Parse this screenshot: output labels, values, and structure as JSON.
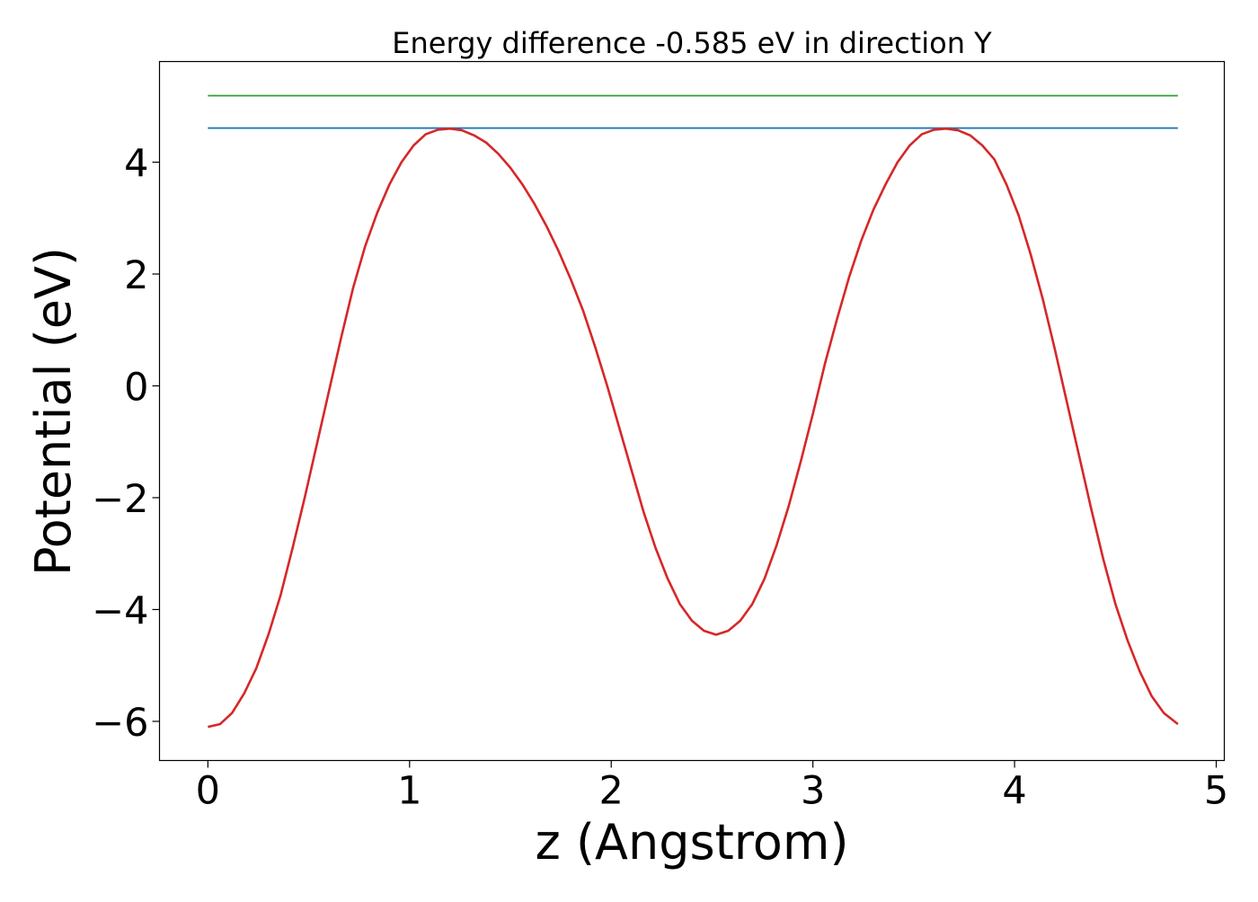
{
  "chart_data": {
    "type": "line",
    "title": "Energy difference -0.585 eV in direction Y",
    "xlabel": "z (Angstrom)",
    "ylabel": "Potential (eV)",
    "xlim": [
      -0.24,
      5.04
    ],
    "ylim": [
      -6.7,
      5.8
    ],
    "grid": false,
    "legend": "none",
    "xticks": [
      0,
      1,
      2,
      3,
      4,
      5
    ],
    "xtick_labels": [
      "0",
      "1",
      "2",
      "3",
      "4",
      "5"
    ],
    "yticks": [
      -6,
      -4,
      -2,
      0,
      2,
      4
    ],
    "ytick_labels": [
      "−6",
      "−4",
      "−2",
      "0",
      "2",
      "4"
    ],
    "series": [
      {
        "color": "#2ca02c",
        "x": [
          0,
          4.81
        ],
        "y": [
          5.19,
          5.19
        ]
      },
      {
        "color": "#1f77b4",
        "x": [
          0,
          4.81
        ],
        "y": [
          4.61,
          4.61
        ]
      },
      {
        "color": "#d62728",
        "x": [
          0,
          0.06,
          0.12,
          0.18,
          0.24,
          0.3,
          0.36,
          0.42,
          0.48,
          0.54,
          0.6,
          0.66,
          0.72,
          0.78,
          0.84,
          0.9,
          0.96,
          1.02,
          1.08,
          1.14,
          1.2,
          1.26,
          1.32,
          1.38,
          1.44,
          1.5,
          1.56,
          1.62,
          1.68,
          1.74,
          1.8,
          1.86,
          1.92,
          1.98,
          2.04,
          2.1,
          2.16,
          2.22,
          2.28,
          2.34,
          2.4,
          2.46,
          2.52,
          2.58,
          2.64,
          2.7,
          2.76,
          2.82,
          2.88,
          2.94,
          3.0,
          3.06,
          3.12,
          3.18,
          3.24,
          3.3,
          3.36,
          3.42,
          3.48,
          3.54,
          3.6,
          3.66,
          3.72,
          3.78,
          3.84,
          3.9,
          3.96,
          4.02,
          4.08,
          4.14,
          4.2,
          4.26,
          4.32,
          4.38,
          4.44,
          4.5,
          4.56,
          4.62,
          4.68,
          4.74,
          4.81
        ],
        "y": [
          -6.1,
          -6.05,
          -5.85,
          -5.5,
          -5.05,
          -4.45,
          -3.75,
          -2.9,
          -2.0,
          -1.05,
          -0.1,
          0.85,
          1.75,
          2.5,
          3.1,
          3.6,
          4.0,
          4.3,
          4.5,
          4.58,
          4.6,
          4.57,
          4.48,
          4.35,
          4.15,
          3.9,
          3.6,
          3.25,
          2.85,
          2.4,
          1.9,
          1.35,
          0.7,
          0.0,
          -0.75,
          -1.5,
          -2.25,
          -2.9,
          -3.45,
          -3.9,
          -4.2,
          -4.38,
          -4.45,
          -4.38,
          -4.2,
          -3.9,
          -3.45,
          -2.85,
          -2.15,
          -1.35,
          -0.5,
          0.4,
          1.2,
          1.95,
          2.6,
          3.15,
          3.6,
          4.0,
          4.3,
          4.5,
          4.58,
          4.6,
          4.57,
          4.48,
          4.3,
          4.05,
          3.6,
          3.05,
          2.35,
          1.55,
          0.65,
          -0.3,
          -1.25,
          -2.2,
          -3.1,
          -3.9,
          -4.55,
          -5.1,
          -5.55,
          -5.85,
          -6.05
        ]
      }
    ]
  }
}
